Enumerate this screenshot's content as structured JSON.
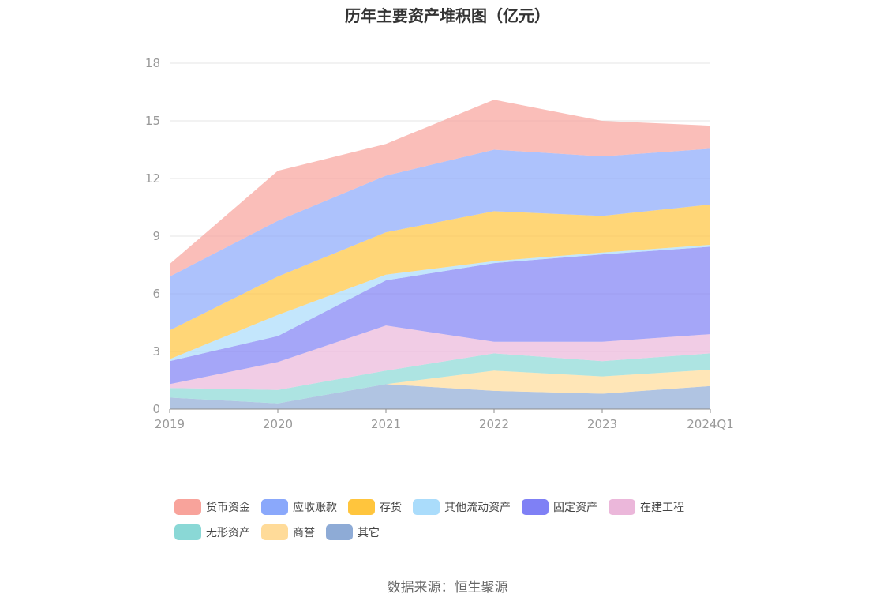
{
  "chart_data": {
    "type": "area",
    "stacked": true,
    "title": "历年主要资产堆积图（亿元）",
    "categories": [
      "2019",
      "2020",
      "2021",
      "2022",
      "2023",
      "2024Q1"
    ],
    "ylim": [
      0,
      18
    ],
    "yticks": [
      0,
      3,
      6,
      9,
      12,
      15,
      18
    ],
    "grid": true,
    "legend_position": "bottom",
    "series": [
      {
        "name": "其它",
        "color": "#8eabd6",
        "values": [
          0.6,
          0.3,
          1.3,
          0.95,
          0.8,
          1.2
        ]
      },
      {
        "name": "商誉",
        "color": "#ffdb99",
        "values": [
          0.0,
          0.0,
          0.0,
          1.05,
          0.9,
          0.85
        ]
      },
      {
        "name": "无形资产",
        "color": "#8ad8d6",
        "values": [
          0.5,
          0.7,
          0.7,
          0.9,
          0.8,
          0.85
        ]
      },
      {
        "name": "在建工程",
        "color": "#ebb7da",
        "values": [
          0.2,
          1.45,
          2.35,
          0.6,
          1.0,
          1.0
        ]
      },
      {
        "name": "固定资产",
        "color": "#7f80f5",
        "values": [
          1.2,
          1.35,
          2.35,
          4.1,
          4.55,
          4.55
        ]
      },
      {
        "name": "其他流动资产",
        "color": "#aadcfb",
        "values": [
          0.1,
          1.1,
          0.3,
          0.1,
          0.1,
          0.1
        ]
      },
      {
        "name": "存货",
        "color": "#ffc53d",
        "values": [
          1.5,
          2.0,
          2.2,
          2.6,
          1.9,
          2.1
        ]
      },
      {
        "name": "应收账款",
        "color": "#8aa8fb",
        "values": [
          2.8,
          2.9,
          2.95,
          3.2,
          3.1,
          2.9
        ]
      },
      {
        "name": "货币资金",
        "color": "#f8a39b",
        "values": [
          0.65,
          2.6,
          1.65,
          2.6,
          1.85,
          1.2
        ]
      }
    ]
  },
  "legend": {
    "items": [
      {
        "name": "货币资金",
        "color": "#f8a39b"
      },
      {
        "name": "应收账款",
        "color": "#8aa8fb"
      },
      {
        "name": "存货",
        "color": "#ffc53d"
      },
      {
        "name": "其他流动资产",
        "color": "#aadcfb"
      },
      {
        "name": "固定资产",
        "color": "#7f80f5"
      },
      {
        "name": "在建工程",
        "color": "#ebb7da"
      },
      {
        "name": "无形资产",
        "color": "#8ad8d6"
      },
      {
        "name": "商誉",
        "color": "#ffdb99"
      },
      {
        "name": "其它",
        "color": "#8eabd6"
      }
    ]
  },
  "source": "数据来源：恒生聚源"
}
